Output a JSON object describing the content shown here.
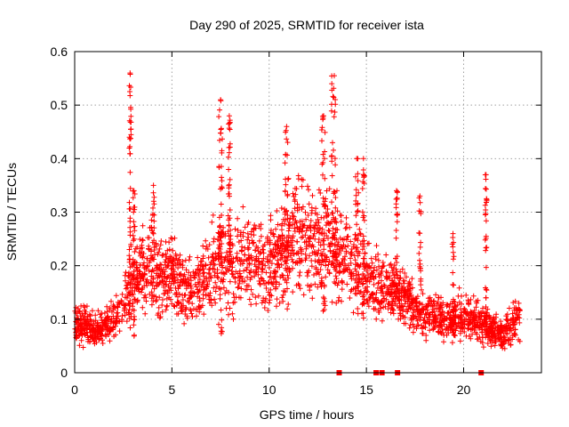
{
  "chart_data": {
    "type": "scatter",
    "title": "Day 290 of 2025, SRMTID for receiver ista",
    "xlabel": "GPS time / hours",
    "ylabel": "SRMTID / TECUs",
    "xlim": [
      0,
      24
    ],
    "ylim": [
      0,
      0.6
    ],
    "xticks": [
      0,
      5,
      10,
      15,
      20
    ],
    "yticks": [
      0,
      0.1,
      0.2,
      0.3,
      0.4,
      0.5,
      0.6
    ],
    "xtick_labels": [
      "0",
      "5",
      "10",
      "15",
      "20"
    ],
    "ytick_labels": [
      "0",
      "0.1",
      "0.2",
      "0.3",
      "0.4",
      "0.5",
      "0.6"
    ],
    "grid": true,
    "marker": "plus",
    "color": "#ff0000",
    "trend": [
      [
        0.0,
        0.085
      ],
      [
        0.5,
        0.09
      ],
      [
        1.0,
        0.075
      ],
      [
        1.5,
        0.085
      ],
      [
        2.0,
        0.1
      ],
      [
        2.5,
        0.13
      ],
      [
        3.0,
        0.17
      ],
      [
        3.5,
        0.19
      ],
      [
        4.0,
        0.2
      ],
      [
        4.5,
        0.17
      ],
      [
        5.0,
        0.19
      ],
      [
        5.5,
        0.16
      ],
      [
        6.0,
        0.15
      ],
      [
        6.5,
        0.17
      ],
      [
        7.0,
        0.19
      ],
      [
        7.5,
        0.22
      ],
      [
        8.0,
        0.2
      ],
      [
        8.5,
        0.21
      ],
      [
        9.0,
        0.22
      ],
      [
        9.5,
        0.21
      ],
      [
        10.0,
        0.2
      ],
      [
        10.5,
        0.22
      ],
      [
        11.0,
        0.24
      ],
      [
        11.5,
        0.26
      ],
      [
        12.0,
        0.25
      ],
      [
        12.5,
        0.24
      ],
      [
        13.0,
        0.24
      ],
      [
        13.5,
        0.23
      ],
      [
        14.0,
        0.22
      ],
      [
        14.5,
        0.19
      ],
      [
        15.0,
        0.17
      ],
      [
        15.5,
        0.17
      ],
      [
        16.0,
        0.16
      ],
      [
        16.5,
        0.15
      ],
      [
        17.0,
        0.14
      ],
      [
        17.5,
        0.12
      ],
      [
        18.0,
        0.11
      ],
      [
        18.5,
        0.11
      ],
      [
        19.0,
        0.1
      ],
      [
        19.5,
        0.1
      ],
      [
        20.0,
        0.11
      ],
      [
        20.5,
        0.1
      ],
      [
        21.0,
        0.09
      ],
      [
        21.5,
        0.08
      ],
      [
        22.0,
        0.07
      ],
      [
        22.5,
        0.09
      ],
      [
        23.0,
        0.1
      ]
    ],
    "spikes": [
      {
        "x": [
          2.8,
          2.9
        ],
        "y": [
          0.05,
          0.56
        ]
      },
      {
        "x": [
          3.0,
          3.1
        ],
        "y": [
          0.05,
          0.34
        ]
      },
      {
        "x": [
          4.0,
          4.1
        ],
        "y": [
          0.1,
          0.35
        ]
      },
      {
        "x": [
          7.4,
          7.6
        ],
        "y": [
          0.05,
          0.51
        ]
      },
      {
        "x": [
          7.9,
          8.0
        ],
        "y": [
          0.1,
          0.48
        ]
      },
      {
        "x": [
          10.8,
          11.0
        ],
        "y": [
          0.1,
          0.46
        ]
      },
      {
        "x": [
          12.7,
          12.9
        ],
        "y": [
          0.1,
          0.48
        ]
      },
      {
        "x": [
          13.2,
          13.5
        ],
        "y": [
          0.1,
          0.555
        ]
      },
      {
        "x": [
          14.4,
          14.6
        ],
        "y": [
          0.1,
          0.4
        ]
      },
      {
        "x": [
          14.8,
          14.9
        ],
        "y": [
          0.1,
          0.4
        ]
      },
      {
        "x": [
          16.5,
          16.6
        ],
        "y": [
          0.1,
          0.34
        ]
      },
      {
        "x": [
          17.7,
          17.8
        ],
        "y": [
          0.1,
          0.33
        ]
      },
      {
        "x": [
          19.4,
          19.5
        ],
        "y": [
          0.05,
          0.26
        ]
      },
      {
        "x": [
          21.1,
          21.2
        ],
        "y": [
          0.05,
          0.37
        ]
      }
    ],
    "zero_markers_x": [
      13.6,
      15.5,
      15.8,
      16.6,
      20.9
    ]
  }
}
